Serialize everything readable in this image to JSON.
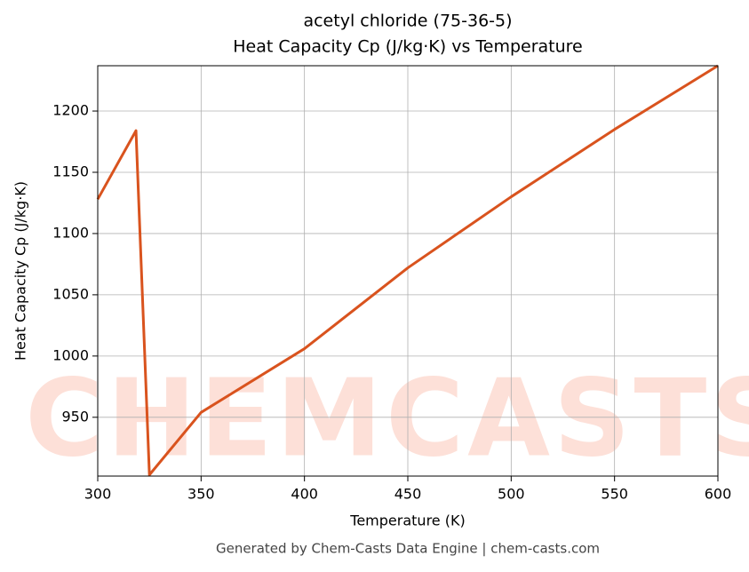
{
  "chart_data": {
    "type": "line",
    "title": "acetyl chloride (75-36-5)",
    "subtitle": "Heat Capacity Cp (J/kg·K) vs Temperature",
    "x_label": "Temperature (K)",
    "y_label": "Heat Capacity Cp (J/kg·K)",
    "footer": "Generated by Chem-Casts Data Engine | chem-casts.com",
    "watermark": "CHEMCASTS",
    "x": [
      300,
      318.5,
      325,
      350,
      400,
      450,
      500,
      550,
      600
    ],
    "series": [
      {
        "name": "Cp",
        "color": "#d9531e",
        "values": [
          1128,
          1184,
          903,
          954,
          1006,
          1072,
          1130,
          1185,
          1237
        ]
      }
    ],
    "xlim": [
      300,
      600
    ],
    "xticks": [
      300,
      350,
      400,
      450,
      500,
      550,
      600
    ],
    "ylim": [
      902,
      1237
    ],
    "yticks": [
      950,
      1000,
      1050,
      1100,
      1150,
      1200
    ],
    "grid": true
  }
}
